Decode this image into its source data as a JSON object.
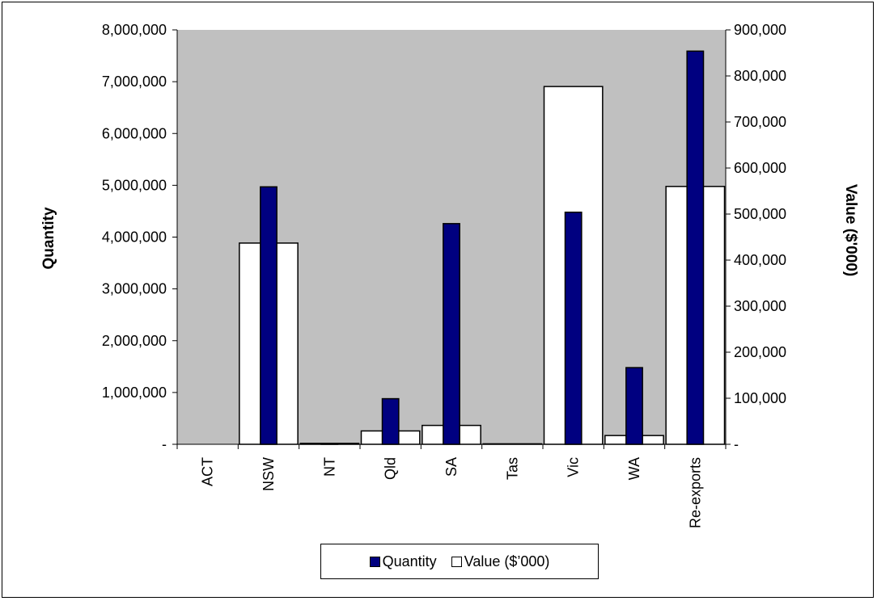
{
  "chart_data": {
    "type": "bar",
    "categories": [
      "ACT",
      "NSW",
      "NT",
      "Qld",
      "SA",
      "Tas",
      "Vic",
      "WA",
      "Re-exports"
    ],
    "series": [
      {
        "name": "Quantity",
        "axis": "left",
        "color": "#000080",
        "values": [
          0,
          4970000,
          10000,
          880000,
          4260000,
          0,
          4480000,
          1480000,
          7590000
        ]
      },
      {
        "name": "Value ($'000)",
        "axis": "right",
        "color": "#ffffff",
        "values": [
          0,
          437000,
          2000,
          29000,
          41000,
          1000,
          777000,
          19000,
          560000
        ]
      }
    ],
    "ylabel": "Quantity",
    "ylabel_right": "Value ($'000)",
    "ylim": [
      0,
      8000000
    ],
    "ylim_right": [
      0,
      900000
    ],
    "yticks_left": [
      "-",
      "1,000,000",
      "2,000,000",
      "3,000,000",
      "4,000,000",
      "5,000,000",
      "6,000,000",
      "7,000,000",
      "8,000,000"
    ],
    "yticks_right": [
      "-",
      "100,000",
      "200,000",
      "300,000",
      "400,000",
      "500,000",
      "600,000",
      "700,000",
      "800,000",
      "900,000"
    ],
    "plot_background": "#c0c0c0",
    "grid": false,
    "legend_position": "bottom"
  },
  "legend": {
    "quantity_label": "Quantity",
    "value_label": "Value ($’000)"
  }
}
